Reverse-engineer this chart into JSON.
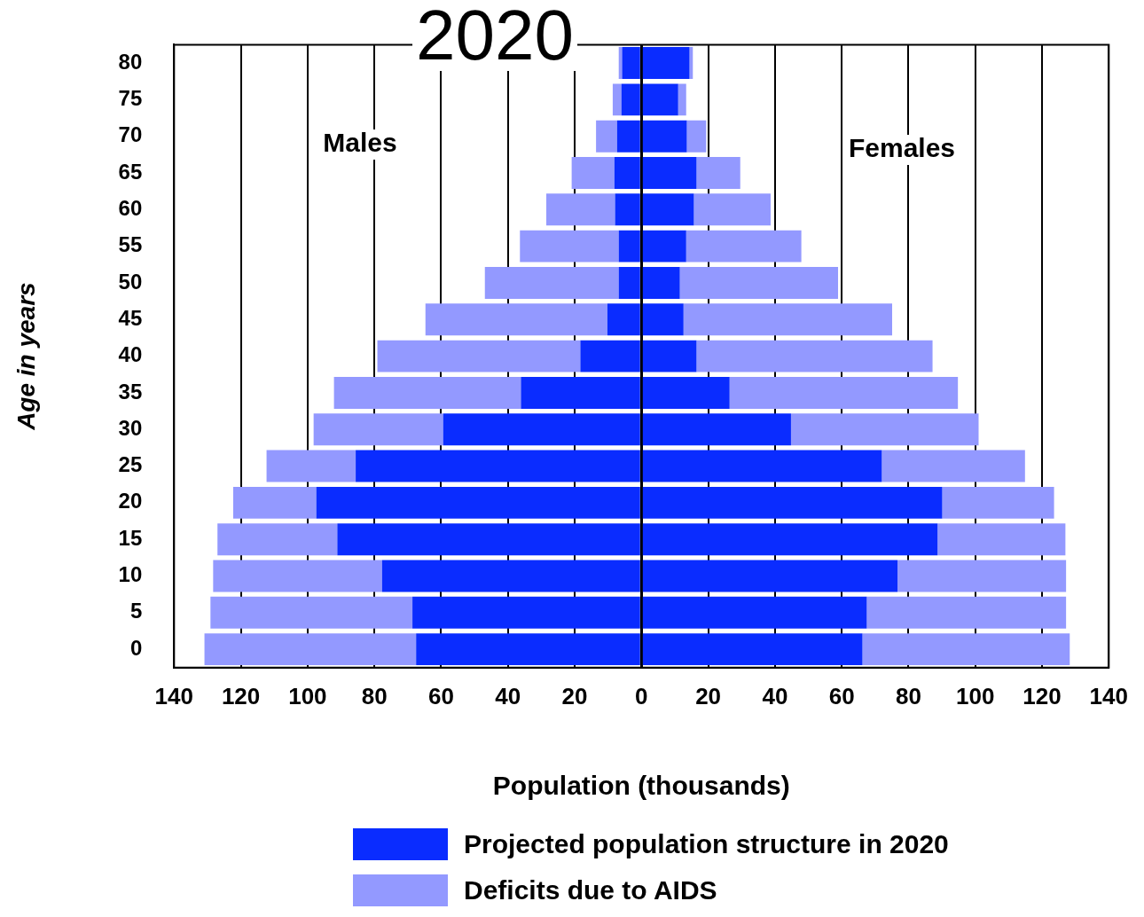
{
  "chart_data": {
    "type": "bar",
    "orientation": "horizontal",
    "stacked": true,
    "title": "2020",
    "xlabel": "Population (thousands)",
    "ylabel": "Age in years",
    "annotations": [
      "Males",
      "Females"
    ],
    "categories": [
      "80",
      "75",
      "70",
      "65",
      "60",
      "55",
      "50",
      "45",
      "40",
      "35",
      "30",
      "25",
      "20",
      "15",
      "10",
      "5",
      "0"
    ],
    "series": [
      {
        "name": "Projected population structure in 2020",
        "color": "#0a2cff",
        "values": [
          -5.8,
          -6,
          -7.3,
          -8.1,
          -7.9,
          -6.8,
          -6.8,
          -10.2,
          -18.3,
          -36.1,
          -59.4,
          -85.6,
          -97.4,
          -91.1,
          -77.7,
          -68.6,
          -67.5
        ]
      },
      {
        "color": "#0a2cff",
        "values": [
          14.4,
          11,
          13.6,
          16.5,
          15.7,
          13.4,
          11.5,
          12.6,
          16.5,
          26.4,
          44.8,
          72,
          90.1,
          88.7,
          76.7,
          67.5,
          66.2
        ]
      },
      {
        "name": "Deficits due to AIDS",
        "color": "#9399ff",
        "values": [
          -1,
          -2.6,
          -6.3,
          -12.8,
          -20.6,
          -29.6,
          -40.1,
          -54.5,
          -60.8,
          -56,
          -38.8,
          -26.7,
          -24.9,
          -35.9,
          -50.6,
          -60.5,
          -63.4
        ]
      },
      {
        "color": "#9399ff",
        "values": [
          1,
          2.4,
          5.8,
          13.1,
          23,
          34.5,
          47.4,
          62.5,
          70.7,
          68.4,
          56.2,
          42.9,
          33.5,
          38.3,
          50.5,
          59.7,
          62.1
        ]
      }
    ],
    "xlim": [
      -140,
      140
    ],
    "xticks": [
      {
        "value": -140,
        "label": "140"
      },
      {
        "value": -120,
        "label": "120"
      },
      {
        "value": -100,
        "label": "100"
      },
      {
        "value": -80,
        "label": "80"
      },
      {
        "value": -60,
        "label": "60"
      },
      {
        "value": -40,
        "label": "40"
      },
      {
        "value": -20,
        "label": "20"
      },
      0,
      20,
      40,
      60,
      80,
      100,
      120,
      140
    ],
    "grid": "x",
    "legend": "bottom"
  }
}
